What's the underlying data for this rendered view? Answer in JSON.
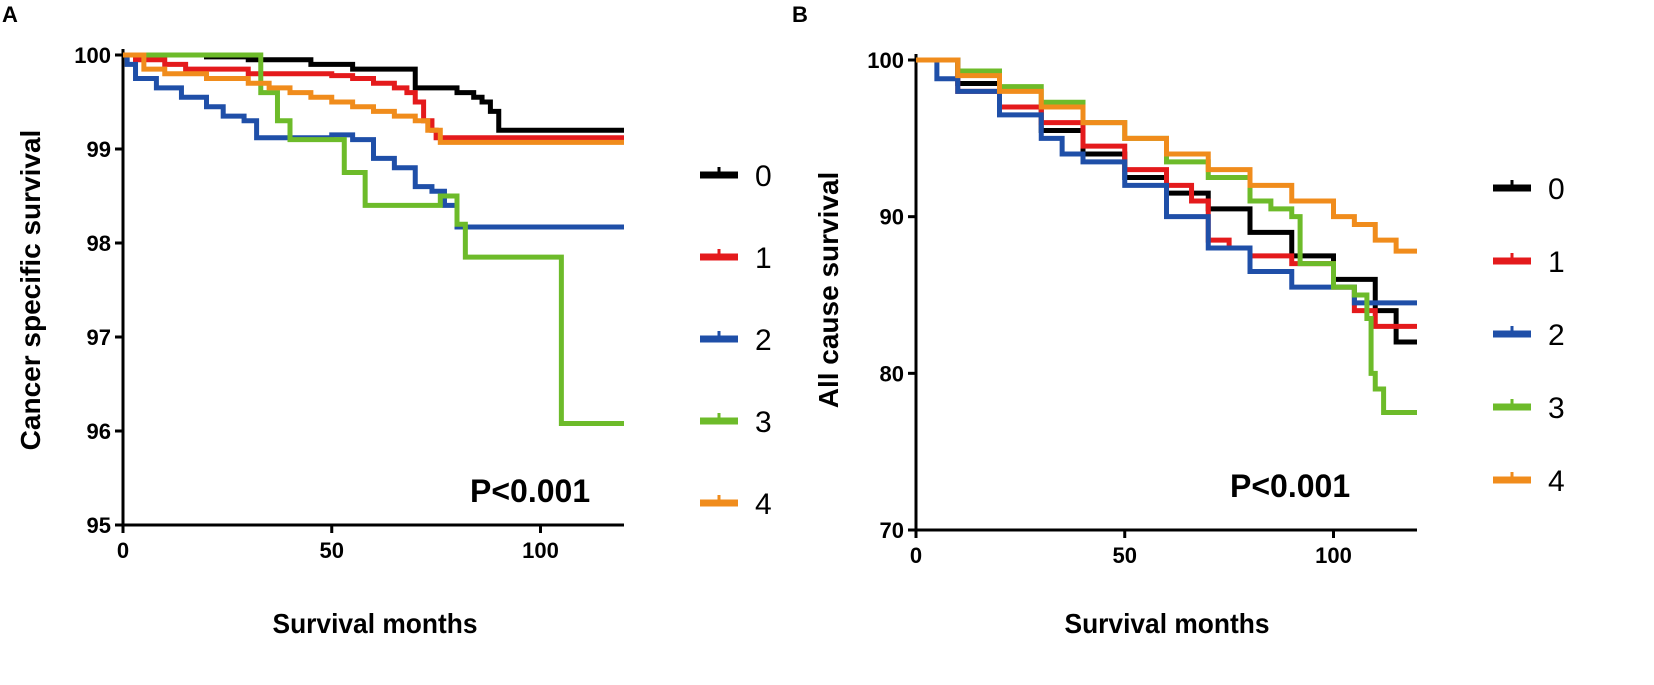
{
  "panel_a": {
    "label": "A",
    "pvalue": "P<0.001"
  },
  "panel_b": {
    "label": "B",
    "pvalue": "P<0.001"
  },
  "legend": {
    "labels": [
      "0",
      "1",
      "2",
      "3",
      "4"
    ],
    "colors": [
      "#000000",
      "#e41a1c",
      "#1f4fa8",
      "#6dbb2a",
      "#f08c1c"
    ]
  },
  "chart_data": [
    {
      "type": "line",
      "panel": "A",
      "title": "",
      "xlabel": "Survival months",
      "ylabel": "Cancer specific survival",
      "xlim": [
        0,
        120
      ],
      "ylim": [
        95,
        100
      ],
      "xticks": [
        0,
        50,
        100
      ],
      "yticks": [
        95,
        96,
        97,
        98,
        99,
        100
      ],
      "pvalue": "P<0.001",
      "series": [
        {
          "name": "0",
          "x": [
            0,
            2,
            20,
            30,
            45,
            55,
            70,
            80,
            84,
            86,
            88,
            90,
            120
          ],
          "y": [
            100,
            100,
            99.98,
            99.95,
            99.9,
            99.85,
            99.65,
            99.6,
            99.55,
            99.5,
            99.4,
            99.2,
            99.2
          ]
        },
        {
          "name": "1",
          "x": [
            0,
            3,
            10,
            15,
            30,
            50,
            55,
            60,
            65,
            68,
            70,
            72,
            74,
            75,
            120
          ],
          "y": [
            100,
            99.95,
            99.9,
            99.85,
            99.8,
            99.78,
            99.75,
            99.7,
            99.65,
            99.6,
            99.5,
            99.3,
            99.2,
            99.12,
            99.12
          ]
        },
        {
          "name": "2",
          "x": [
            0,
            1,
            3,
            8,
            14,
            20,
            24,
            29,
            32,
            40,
            50,
            55,
            60,
            65,
            70,
            74,
            77,
            80,
            100,
            120
          ],
          "y": [
            100,
            99.9,
            99.75,
            99.65,
            99.55,
            99.45,
            99.35,
            99.3,
            99.12,
            99.12,
            99.15,
            99.1,
            98.9,
            98.8,
            98.6,
            98.55,
            98.4,
            98.17,
            98.17,
            98.17
          ]
        },
        {
          "name": "3",
          "x": [
            0,
            30,
            33,
            37,
            40,
            50,
            53,
            58,
            70,
            76,
            80,
            82,
            104,
            105,
            120
          ],
          "y": [
            100,
            100,
            99.6,
            99.3,
            99.1,
            99.1,
            98.75,
            98.4,
            98.4,
            98.5,
            98.2,
            97.85,
            97.85,
            96.08,
            96.08
          ]
        },
        {
          "name": "4",
          "x": [
            0,
            5,
            10,
            20,
            30,
            35,
            40,
            45,
            50,
            55,
            60,
            65,
            70,
            73,
            76,
            120
          ],
          "y": [
            100,
            99.85,
            99.8,
            99.75,
            99.7,
            99.65,
            99.6,
            99.55,
            99.5,
            99.45,
            99.4,
            99.35,
            99.3,
            99.2,
            99.07,
            99.07
          ]
        }
      ]
    },
    {
      "type": "line",
      "panel": "B",
      "title": "",
      "xlabel": "Survival months",
      "ylabel": "All cause survival",
      "xlim": [
        0,
        120
      ],
      "ylim": [
        70,
        100
      ],
      "xticks": [
        0,
        50,
        100
      ],
      "yticks": [
        70,
        80,
        90,
        100
      ],
      "pvalue": "P<0.001",
      "series": [
        {
          "name": "0",
          "x": [
            0,
            10,
            20,
            30,
            40,
            50,
            60,
            70,
            80,
            90,
            100,
            110,
            115,
            120
          ],
          "y": [
            100,
            98.5,
            97,
            95.5,
            94,
            92.5,
            91.5,
            90.5,
            89,
            87.5,
            86,
            84,
            82,
            82
          ]
        },
        {
          "name": "1",
          "x": [
            0,
            10,
            20,
            30,
            40,
            50,
            60,
            66,
            70,
            75,
            80,
            90,
            100,
            105,
            110,
            120
          ],
          "y": [
            100,
            98,
            97,
            96,
            94.5,
            93,
            92,
            91,
            88.5,
            88,
            87.5,
            87,
            85.5,
            84,
            83,
            83
          ]
        },
        {
          "name": "2",
          "x": [
            0,
            5,
            10,
            20,
            30,
            35,
            40,
            50,
            60,
            70,
            80,
            90,
            100,
            105,
            120
          ],
          "y": [
            100,
            98.8,
            98,
            96.5,
            95,
            94,
            93.5,
            92,
            90,
            88,
            86.5,
            85.5,
            85.5,
            84.5,
            84.5
          ]
        },
        {
          "name": "3",
          "x": [
            0,
            10,
            20,
            30,
            40,
            50,
            60,
            70,
            80,
            85,
            90,
            92,
            100,
            105,
            108,
            109,
            110,
            112,
            120
          ],
          "y": [
            100,
            99.3,
            98.3,
            97.3,
            96,
            95,
            93.5,
            92.5,
            91,
            90.5,
            90,
            87,
            85.5,
            85,
            83.5,
            80,
            79,
            77.5,
            77.5
          ]
        },
        {
          "name": "4",
          "x": [
            0,
            10,
            20,
            30,
            40,
            50,
            60,
            70,
            80,
            90,
            100,
            105,
            110,
            115,
            120
          ],
          "y": [
            100,
            99,
            98,
            97,
            96,
            95,
            94,
            93,
            92,
            91,
            90,
            89.5,
            88.5,
            87.8,
            87.8
          ]
        }
      ]
    }
  ]
}
